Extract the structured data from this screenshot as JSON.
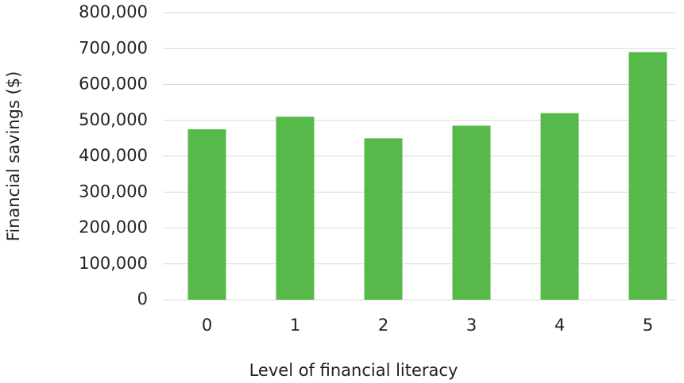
{
  "chart_data": {
    "type": "bar",
    "x_label": "Level of financial literacy",
    "y_label": "Financial savings ($)",
    "categories": [
      "0",
      "1",
      "2",
      "3",
      "4",
      "5"
    ],
    "values": [
      475000,
      510000,
      450000,
      485000,
      520000,
      690000
    ],
    "color": "#56b949",
    "ylim": [
      0,
      800000
    ],
    "yticks": [
      0,
      {
        "value": 100000,
        "label": "100,000"
      },
      {
        "value": 200000,
        "label": "200,000"
      },
      {
        "value": 300000,
        "label": "300,000"
      },
      {
        "value": 400000,
        "label": "400,000"
      },
      {
        "value": 500000,
        "label": "500,000"
      },
      {
        "value": 600000,
        "label": "600,000"
      },
      {
        "value": 700000,
        "label": "700,000"
      },
      {
        "value": 800000,
        "label": "800,000"
      }
    ],
    "grid": true
  }
}
